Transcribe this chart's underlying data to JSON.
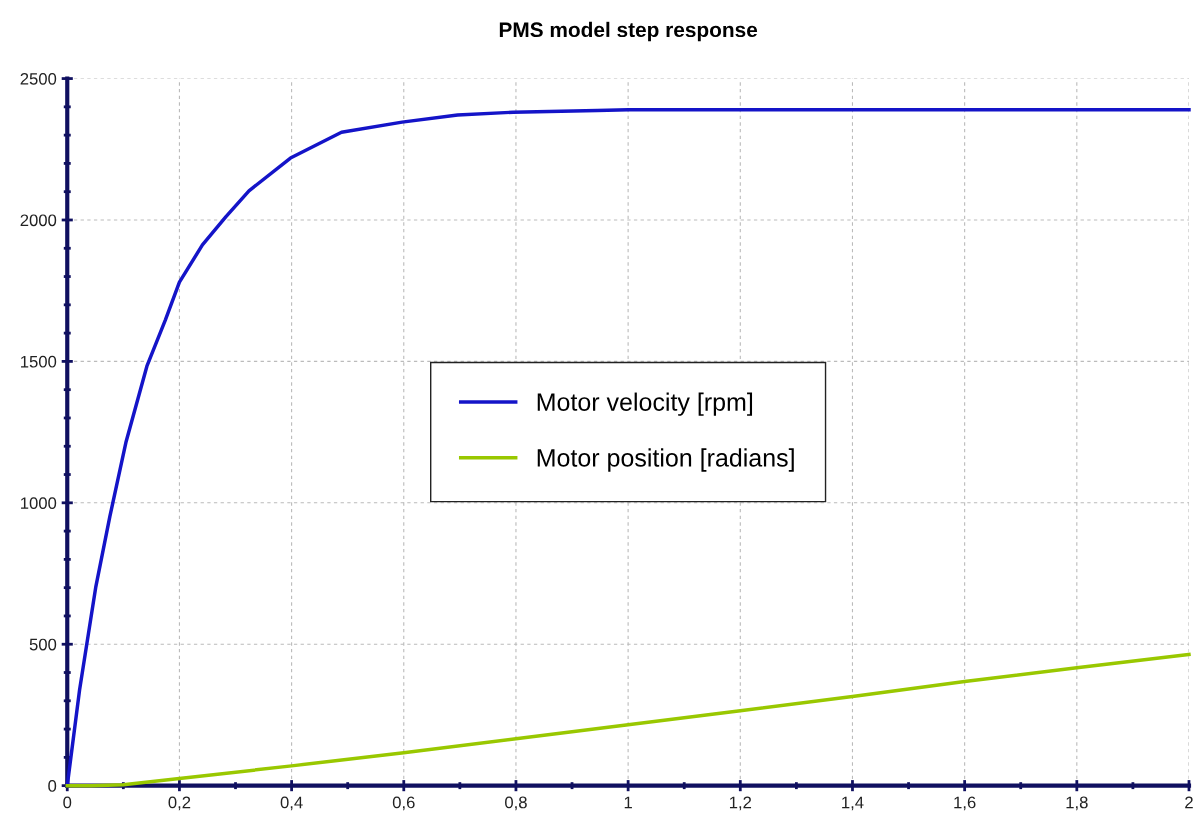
{
  "chart_data": {
    "type": "line",
    "title": "PMS model step response",
    "xlim": [
      0,
      2
    ],
    "ylim": [
      0,
      2500
    ],
    "xticks": [
      0,
      {
        "value": 0.2,
        "label": "0,2"
      },
      {
        "value": 0.4,
        "label": "0,4"
      },
      {
        "value": 0.6,
        "label": "0,6"
      },
      {
        "value": 0.8,
        "label": "0,8"
      },
      1,
      {
        "value": 1.2,
        "label": "1,2"
      },
      {
        "value": 1.4,
        "label": "1,4"
      },
      {
        "value": 1.6,
        "label": "1,6"
      },
      {
        "value": 1.8,
        "label": "1,8"
      },
      2
    ],
    "yticks": [
      0,
      500,
      1000,
      1500,
      2000,
      2500
    ],
    "grid": true,
    "legend": "center",
    "marker": "none",
    "line_style": "solid",
    "series": [
      {
        "name": "Motor velocity [rpm]",
        "color": "#1414c8",
        "x": [
          0,
          0.022,
          0.051,
          0.076,
          0.105,
          0.142,
          0.175,
          0.2,
          0.241,
          0.283,
          0.324,
          0.398,
          0.489,
          0.597,
          0.696,
          0.795,
          0.945,
          1,
          1.5,
          2
        ],
        "values": [
          0,
          339,
          704,
          952,
          1217,
          1483,
          1647,
          1780,
          1912,
          2012,
          2103,
          2219,
          2310,
          2346,
          2371,
          2381,
          2387,
          2390,
          2390,
          2390
        ]
      },
      {
        "name": "Motor position [radians]",
        "color": "#99c800",
        "x": [
          0,
          0.043,
          0.1,
          0.2,
          0.4,
          0.6,
          0.8,
          1,
          1.2,
          1.4,
          1.6,
          1.8,
          2
        ],
        "values": [
          0,
          0,
          3,
          25,
          70,
          116,
          166,
          215,
          265,
          315,
          368,
          417,
          464
        ]
      }
    ]
  }
}
